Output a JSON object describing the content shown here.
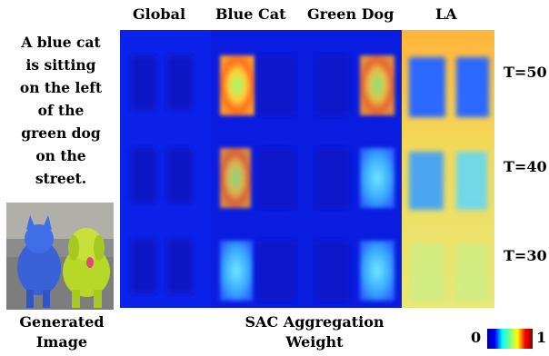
{
  "columns": [
    "Global",
    "Blue Cat",
    "Green Dog",
    "LA"
  ],
  "prompt_lines": [
    "A blue cat",
    "is sitting",
    "on the left",
    "of the",
    "green dog",
    "on the",
    "street."
  ],
  "rows": [
    "T=50",
    "T=40",
    "T=30"
  ],
  "bottom_left_label": [
    "Generated",
    "Image"
  ],
  "bottom_center_label": [
    "SAC Aggregation",
    "Weight"
  ],
  "colorbar": {
    "min": "0",
    "max": "1"
  },
  "colors": {
    "low": "#0a1fe6",
    "mid": "#3fe0ff",
    "high": "#ffc040"
  }
}
